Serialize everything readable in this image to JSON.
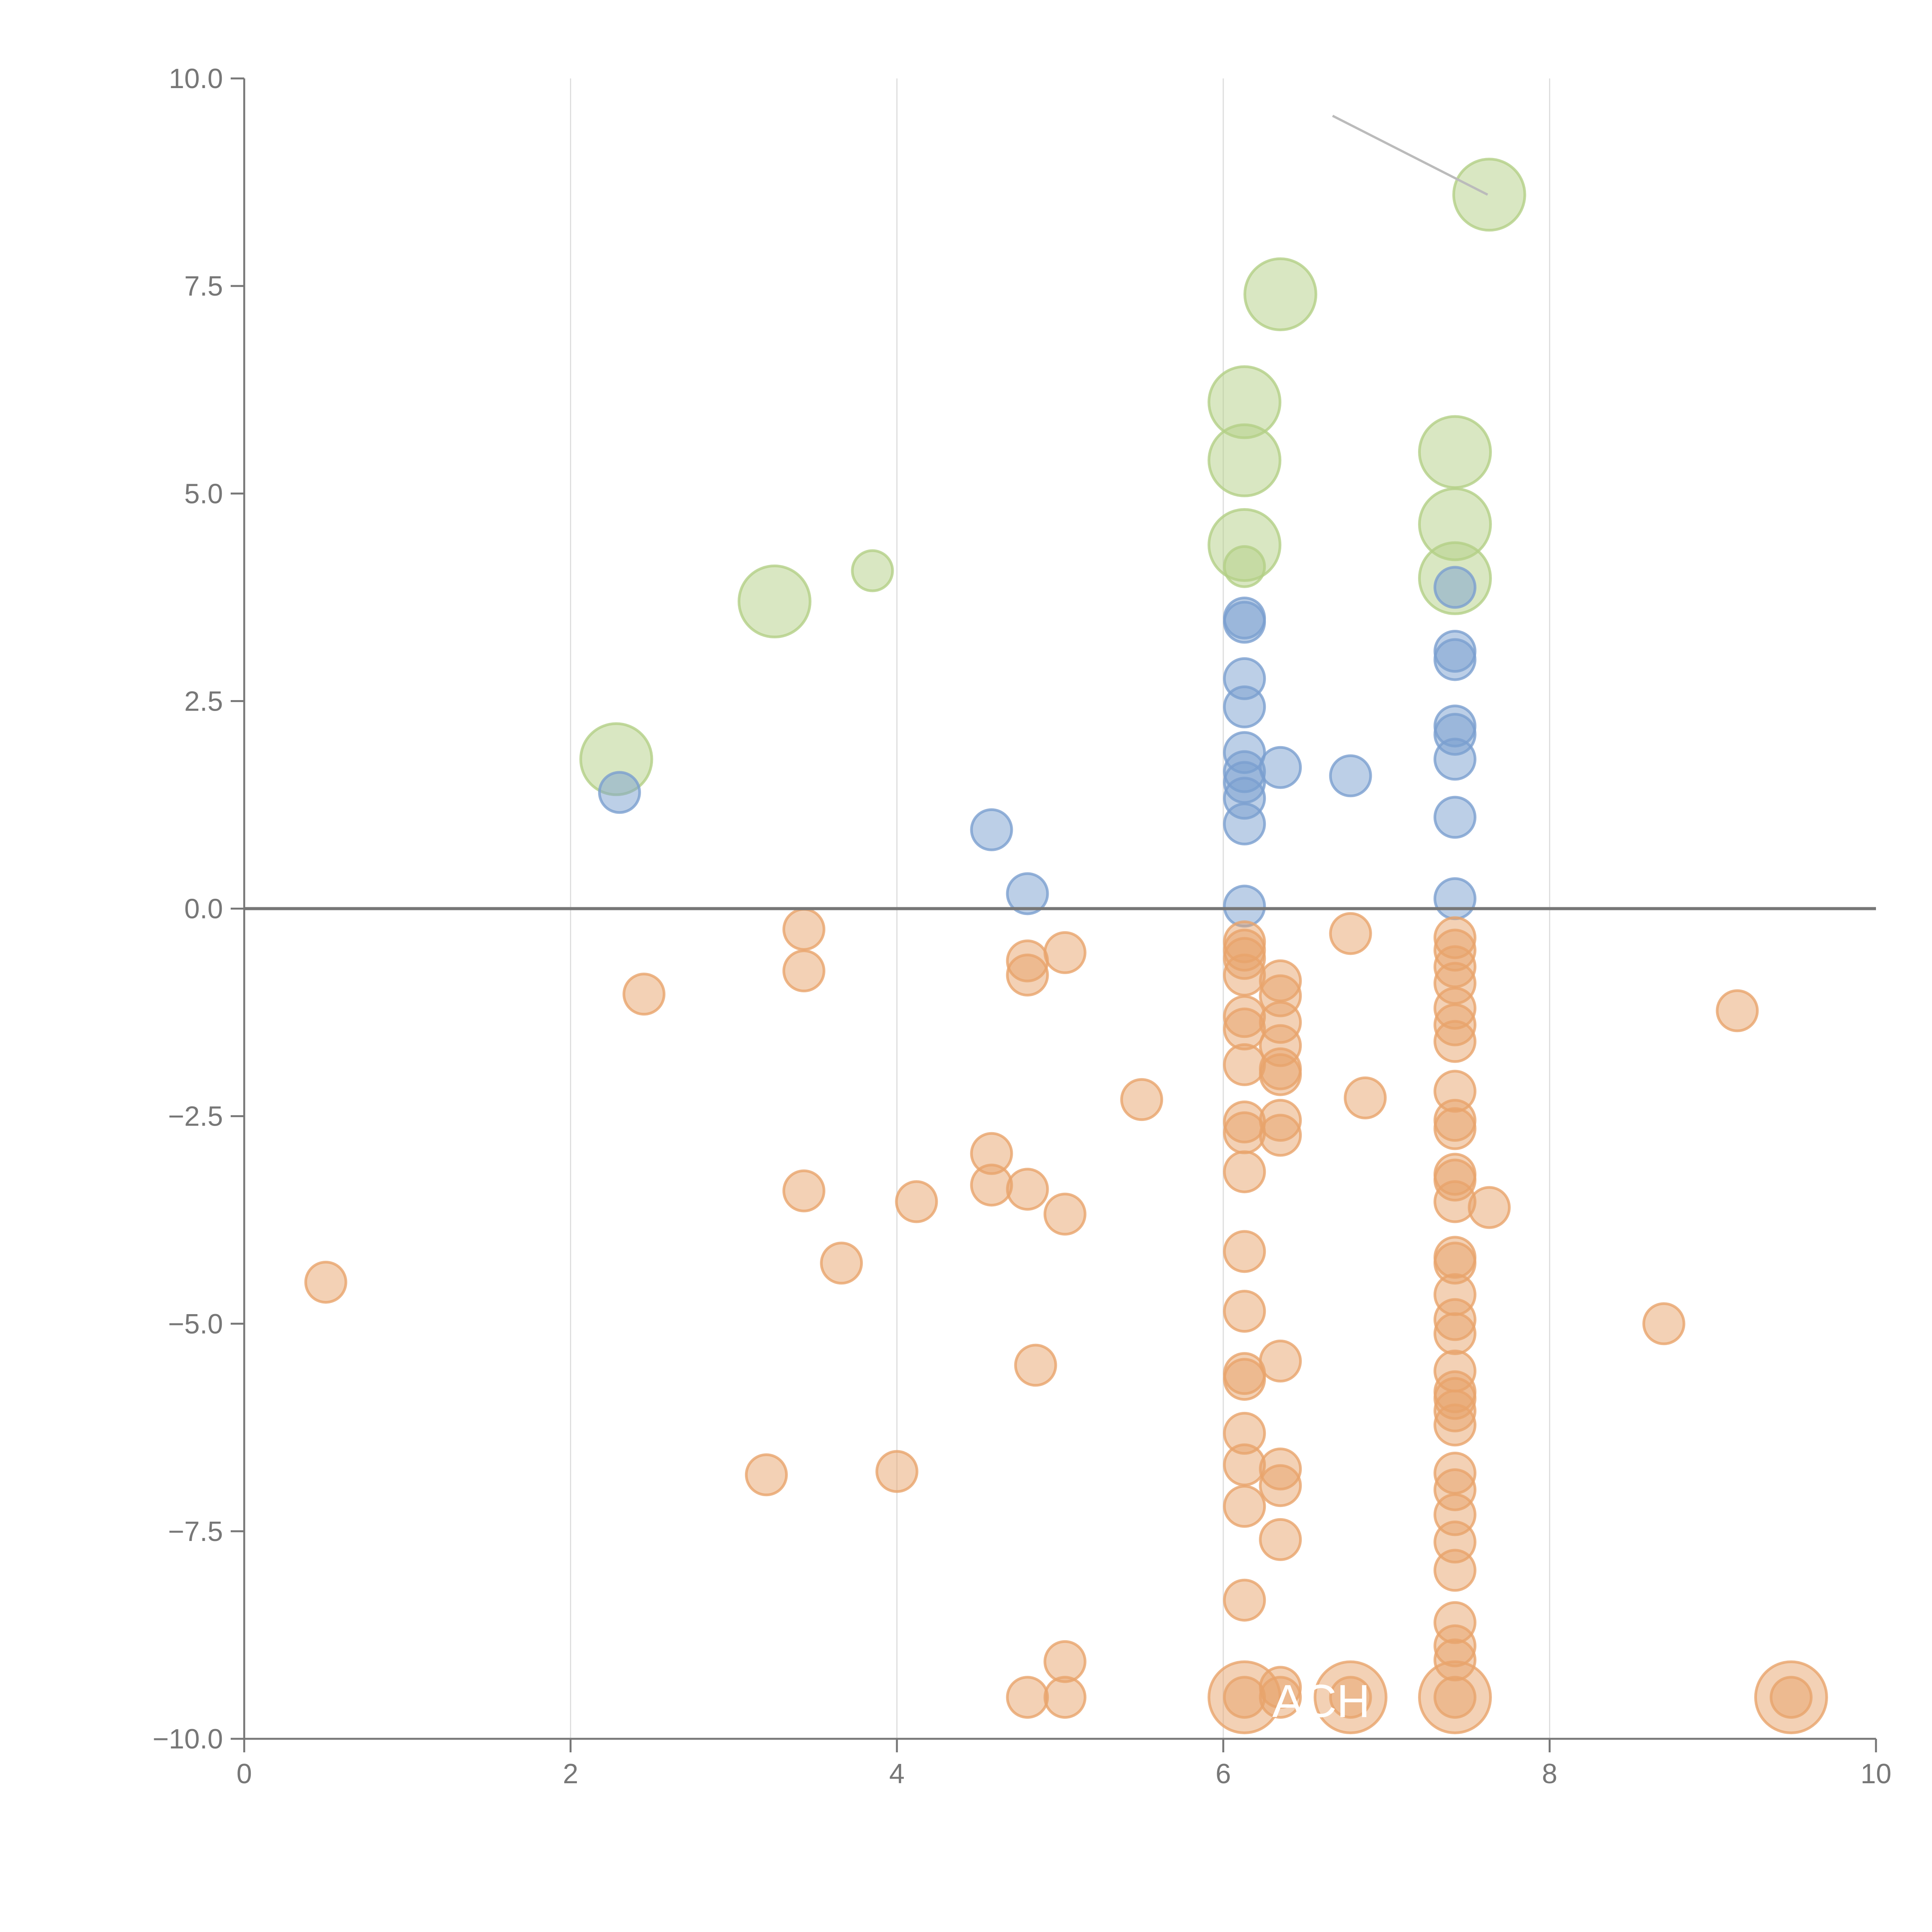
{
  "chart_data": {
    "type": "scatter",
    "title": "",
    "xlabel": "",
    "ylabel": "",
    "xlim": [
      0,
      10
    ],
    "ylim": [
      -10,
      10
    ],
    "x_ticks": [
      "0",
      "2",
      "4",
      "6",
      "8",
      "10"
    ],
    "y_ticks": [
      "10.0",
      "7.5",
      "5.0",
      "2.5",
      "0.0",
      "−2.5",
      "−5.0",
      "−7.5",
      "−10.0"
    ],
    "grid": "vertical",
    "annotation": {
      "text": "ACH",
      "x": 6.6,
      "y": -9.55
    },
    "leader_line": {
      "x1": 6.67,
      "y1": 9.55,
      "x2": 7.62,
      "y2": 8.6
    },
    "series": [
      {
        "name": "green",
        "color": "#b3cf86",
        "points": [
          [
            7.63,
            8.6,
            2
          ],
          [
            6.35,
            7.4,
            2
          ],
          [
            6.13,
            6.1,
            2
          ],
          [
            6.13,
            5.4,
            2
          ],
          [
            7.42,
            5.5,
            2
          ],
          [
            7.42,
            4.63,
            2
          ],
          [
            6.13,
            4.38,
            2
          ],
          [
            7.42,
            3.98,
            2
          ],
          [
            3.25,
            3.7,
            2
          ],
          [
            2.28,
            1.8,
            2
          ],
          [
            3.85,
            4.07,
            1
          ],
          [
            6.13,
            4.12,
            1
          ]
        ]
      },
      {
        "name": "blue",
        "color": "#7a9fd0",
        "points": [
          [
            2.3,
            1.4,
            1
          ],
          [
            4.58,
            0.95,
            1
          ],
          [
            4.8,
            0.18,
            1
          ],
          [
            6.13,
            3.5,
            1
          ],
          [
            6.13,
            3.45,
            1
          ],
          [
            6.13,
            2.77,
            1
          ],
          [
            6.13,
            2.43,
            1
          ],
          [
            6.13,
            1.88,
            1
          ],
          [
            6.13,
            1.65,
            1
          ],
          [
            6.13,
            1.52,
            1
          ],
          [
            6.13,
            1.33,
            1
          ],
          [
            6.13,
            1.02,
            1
          ],
          [
            6.13,
            0.03,
            1
          ],
          [
            6.35,
            1.7,
            1
          ],
          [
            6.78,
            1.6,
            1
          ],
          [
            7.42,
            3.87,
            1
          ],
          [
            7.42,
            3.1,
            1
          ],
          [
            7.42,
            3.0,
            1
          ],
          [
            7.42,
            2.2,
            1
          ],
          [
            7.42,
            2.1,
            1
          ],
          [
            7.42,
            1.8,
            1
          ],
          [
            7.42,
            1.1,
            1
          ],
          [
            7.42,
            0.12,
            1
          ]
        ]
      },
      {
        "name": "orange",
        "color": "#e8a46c",
        "points": [
          [
            0.5,
            -4.5,
            1
          ],
          [
            2.45,
            -1.03,
            1
          ],
          [
            3.2,
            -6.82,
            1
          ],
          [
            3.43,
            -0.25,
            1
          ],
          [
            3.43,
            -0.75,
            1
          ],
          [
            3.43,
            -3.4,
            1
          ],
          [
            3.66,
            -4.27,
            1
          ],
          [
            4.0,
            -6.78,
            1
          ],
          [
            4.12,
            -3.53,
            1
          ],
          [
            4.58,
            -2.95,
            1
          ],
          [
            4.58,
            -3.33,
            1
          ],
          [
            4.8,
            -0.63,
            1
          ],
          [
            4.8,
            -0.8,
            1
          ],
          [
            4.8,
            -3.38,
            1
          ],
          [
            4.85,
            -5.5,
            1
          ],
          [
            4.8,
            -9.5,
            1
          ],
          [
            5.03,
            -0.53,
            1
          ],
          [
            5.03,
            -3.68,
            1
          ],
          [
            5.03,
            -9.07,
            1
          ],
          [
            5.03,
            -9.5,
            1
          ],
          [
            5.5,
            -2.3,
            1
          ],
          [
            6.13,
            -0.4,
            1
          ],
          [
            6.13,
            -0.5,
            1
          ],
          [
            6.13,
            -0.6,
            1
          ],
          [
            6.13,
            -0.8,
            1
          ],
          [
            6.13,
            -1.3,
            1
          ],
          [
            6.13,
            -1.45,
            1
          ],
          [
            6.13,
            -1.88,
            1
          ],
          [
            6.13,
            -2.57,
            1
          ],
          [
            6.13,
            -2.7,
            1
          ],
          [
            6.13,
            -3.17,
            1
          ],
          [
            6.13,
            -4.13,
            1
          ],
          [
            6.13,
            -4.85,
            1
          ],
          [
            6.13,
            -5.6,
            1
          ],
          [
            6.13,
            -5.67,
            1
          ],
          [
            6.13,
            -6.32,
            1
          ],
          [
            6.13,
            -6.7,
            1
          ],
          [
            6.13,
            -7.2,
            1
          ],
          [
            6.13,
            -8.33,
            1
          ],
          [
            6.13,
            -9.5,
            1
          ],
          [
            6.35,
            -0.87,
            1
          ],
          [
            6.35,
            -1.05,
            1
          ],
          [
            6.35,
            -1.37,
            1
          ],
          [
            6.35,
            -1.65,
            1
          ],
          [
            6.35,
            -1.93,
            1
          ],
          [
            6.35,
            -2.0,
            1
          ],
          [
            6.35,
            -2.55,
            1
          ],
          [
            6.35,
            -2.73,
            1
          ],
          [
            6.35,
            -5.45,
            1
          ],
          [
            6.35,
            -6.75,
            1
          ],
          [
            6.35,
            -6.95,
            1
          ],
          [
            6.35,
            -7.6,
            1
          ],
          [
            6.35,
            -9.38,
            1
          ],
          [
            6.35,
            -9.5,
            1
          ],
          [
            6.78,
            -0.3,
            1
          ],
          [
            6.87,
            -2.28,
            1
          ],
          [
            6.78,
            -9.5,
            1
          ],
          [
            7.42,
            -0.35,
            1
          ],
          [
            7.42,
            -0.5,
            1
          ],
          [
            7.42,
            -0.7,
            1
          ],
          [
            7.42,
            -0.9,
            1
          ],
          [
            7.42,
            -1.2,
            1
          ],
          [
            7.42,
            -1.4,
            1
          ],
          [
            7.42,
            -1.6,
            1
          ],
          [
            7.42,
            -2.2,
            1
          ],
          [
            7.42,
            -2.55,
            1
          ],
          [
            7.42,
            -2.65,
            1
          ],
          [
            7.42,
            -3.2,
            1
          ],
          [
            7.42,
            -3.27,
            1
          ],
          [
            7.42,
            -3.53,
            1
          ],
          [
            7.42,
            -4.2,
            1
          ],
          [
            7.42,
            -4.27,
            1
          ],
          [
            7.42,
            -4.65,
            1
          ],
          [
            7.42,
            -4.95,
            1
          ],
          [
            7.42,
            -5.12,
            1
          ],
          [
            7.42,
            -5.57,
            1
          ],
          [
            7.42,
            -5.82,
            1
          ],
          [
            7.42,
            -5.9,
            1
          ],
          [
            7.42,
            -6.05,
            1
          ],
          [
            7.42,
            -6.22,
            1
          ],
          [
            7.42,
            -6.8,
            1
          ],
          [
            7.42,
            -7.0,
            1
          ],
          [
            7.42,
            -7.3,
            1
          ],
          [
            7.42,
            -7.63,
            1
          ],
          [
            7.42,
            -7.97,
            1
          ],
          [
            7.42,
            -8.6,
            1
          ],
          [
            7.42,
            -8.88,
            1
          ],
          [
            7.42,
            -9.05,
            1
          ],
          [
            7.42,
            -9.5,
            1
          ],
          [
            7.63,
            -3.6,
            1
          ],
          [
            8.7,
            -5.0,
            1
          ],
          [
            9.15,
            -1.23,
            1
          ],
          [
            9.48,
            -9.5,
            1
          ],
          [
            6.13,
            -9.5,
            2
          ],
          [
            6.78,
            -9.5,
            2
          ],
          [
            7.42,
            -9.5,
            2
          ],
          [
            9.48,
            -9.5,
            2
          ]
        ]
      }
    ]
  }
}
